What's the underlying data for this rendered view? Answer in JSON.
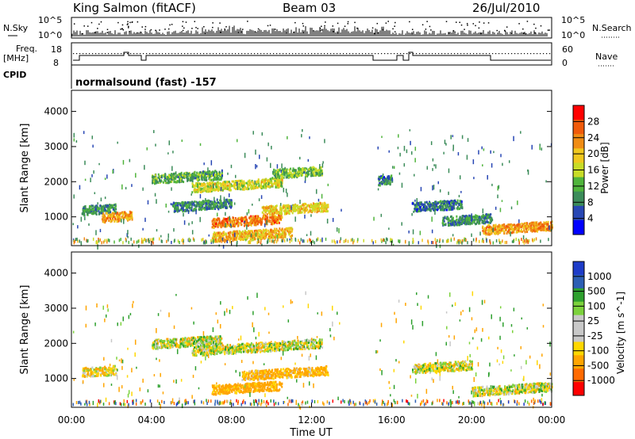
{
  "header": {
    "station": "King Salmon (fitACF)",
    "beam": "Beam 03",
    "date": "26/Jul/2010"
  },
  "noise_panel": {
    "left_label": "N.Sky",
    "right_label": "N.Search",
    "left_ticks": [
      "10^5",
      "10^0"
    ],
    "right_ticks": [
      "10^5",
      "10^0"
    ]
  },
  "freq_panel": {
    "left_label_1": "Freq.",
    "left_label_2": "[MHz]",
    "left_ticks": [
      "18",
      "8"
    ],
    "right_label": "Nave",
    "right_ticks": [
      "60",
      "0"
    ]
  },
  "cpid_panel": {
    "label": "CPID",
    "value": "normalsound (fast) -157"
  },
  "colors": {
    "power": [
      "#0000ff",
      "#2847b4",
      "#3c8c5a",
      "#50b43c",
      "#c8dc28",
      "#f0c81e",
      "#f08c14",
      "#f05a0a",
      "#ff0000"
    ],
    "velocity": [
      "#ff0000",
      "#ff6a00",
      "#ffa500",
      "#ffd700",
      "#c8c8c8",
      "#c8c8c8",
      "#7cd23c",
      "#2ea02e",
      "#2d5fb4",
      "#1e3cc8"
    ]
  },
  "chart_data": [
    {
      "type": "heatmap",
      "title": "",
      "xlabel": "",
      "ylabel": "Slant Range [km]",
      "xlim": [
        "00:00",
        "24:00"
      ],
      "ylim": [
        180,
        4600
      ],
      "yticks": [
        "1000",
        "2000",
        "3000",
        "4000"
      ],
      "colorbar": {
        "label": "Power [dB]",
        "ticks": [
          "4",
          "8",
          "12",
          "16",
          "20",
          "24",
          "28"
        ],
        "range": [
          0,
          30
        ]
      },
      "echo_regions": [
        {
          "t_start": 0.5,
          "t_end": 2.2,
          "range_km": 1200,
          "power_db": 8
        },
        {
          "t_start": 1.5,
          "t_end": 3.0,
          "range_km": 1000,
          "power_db": 22
        },
        {
          "t_start": 4.0,
          "t_end": 7.5,
          "range_km": 2100,
          "power_db": 10
        },
        {
          "t_start": 6.0,
          "t_end": 10.5,
          "range_km": 1850,
          "power_db": 16
        },
        {
          "t_start": 10.0,
          "t_end": 12.5,
          "range_km": 2250,
          "power_db": 12
        },
        {
          "t_start": 5.0,
          "t_end": 8.0,
          "range_km": 1300,
          "power_db": 8
        },
        {
          "t_start": 7.0,
          "t_end": 10.5,
          "range_km": 850,
          "power_db": 24
        },
        {
          "t_start": 9.5,
          "t_end": 12.8,
          "range_km": 1200,
          "power_db": 18
        },
        {
          "t_start": 7.0,
          "t_end": 11.0,
          "range_km": 450,
          "power_db": 20
        },
        {
          "t_start": 15.3,
          "t_end": 16.0,
          "range_km": 2050,
          "power_db": 6
        },
        {
          "t_start": 17.0,
          "t_end": 19.5,
          "range_km": 1300,
          "power_db": 6
        },
        {
          "t_start": 18.5,
          "t_end": 21.0,
          "range_km": 900,
          "power_db": 8
        },
        {
          "t_start": 20.5,
          "t_end": 24.0,
          "range_km": 650,
          "power_db": 22
        }
      ]
    },
    {
      "type": "heatmap",
      "title": "",
      "xlabel": "Time UT",
      "ylabel": "Slant Range [km]",
      "xlim": [
        "00:00",
        "24:00"
      ],
      "ylim": [
        180,
        4600
      ],
      "xticks": [
        "00:00",
        "04:00",
        "08:00",
        "12:00",
        "16:00",
        "20:00",
        "00:00"
      ],
      "yticks": [
        "1000",
        "2000",
        "3000",
        "4000"
      ],
      "colorbar": {
        "label": "Velocity [m s^-1]",
        "ticks": [
          "-1000",
          "-500",
          "-100",
          "-25",
          "25",
          "100",
          "500",
          "1000"
        ],
        "range": [
          -1500,
          1500
        ]
      },
      "echo_regions": [
        {
          "t_start": 0.5,
          "t_end": 2.2,
          "range_km": 1200,
          "velocity_ms": -50
        },
        {
          "t_start": 4.0,
          "t_end": 7.5,
          "range_km": 2000,
          "velocity_ms": 0
        },
        {
          "t_start": 6.0,
          "t_end": 12.5,
          "range_km": 1800,
          "velocity_ms": 0
        },
        {
          "t_start": 8.5,
          "t_end": 12.8,
          "range_km": 1100,
          "velocity_ms": -150
        },
        {
          "t_start": 7.0,
          "t_end": 10.5,
          "range_km": 700,
          "velocity_ms": -200
        },
        {
          "t_start": 17.0,
          "t_end": 20.0,
          "range_km": 1300,
          "velocity_ms": 0
        },
        {
          "t_start": 20.0,
          "t_end": 24.0,
          "range_km": 650,
          "velocity_ms": 0
        }
      ]
    }
  ]
}
